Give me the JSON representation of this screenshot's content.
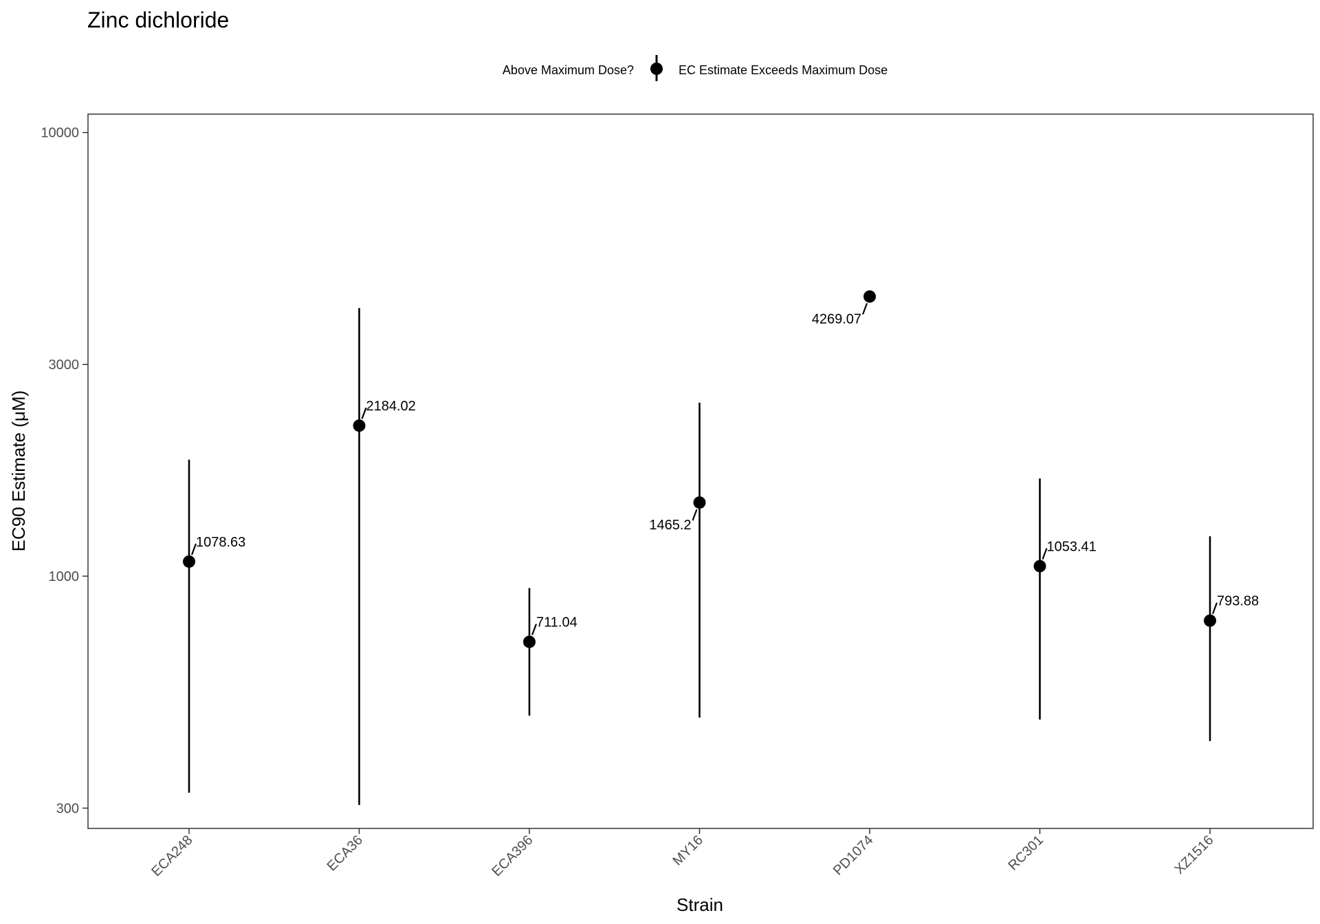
{
  "chart_data": {
    "type": "scatter",
    "title": "Zinc dichloride",
    "xlabel": "Strain",
    "ylabel": "EC90 Estimate (μM)",
    "y_scale": "log10",
    "ylim": [
      270,
      11000
    ],
    "y_ticks": [
      300,
      1000,
      3000,
      10000
    ],
    "y_tick_labels": [
      "300",
      "1000",
      "3000",
      "10000"
    ],
    "categories": [
      "ECA248",
      "ECA36",
      "ECA396",
      "MY16",
      "PD1074",
      "RC301",
      "XZ1516"
    ],
    "legend": {
      "title": "Above Maximum Dose?",
      "entries": [
        "EC Estimate Exceeds Maximum Dose"
      ],
      "position": "top"
    },
    "grid": false,
    "points": [
      {
        "x": "ECA248",
        "y": 1078.63,
        "lower": 325,
        "upper": 1830,
        "label": "1078.63",
        "label_side": "right"
      },
      {
        "x": "ECA36",
        "y": 2184.02,
        "lower": 305,
        "upper": 4020,
        "label": "2184.02",
        "label_side": "right"
      },
      {
        "x": "ECA396",
        "y": 711.04,
        "lower": 485,
        "upper": 940,
        "label": "711.04",
        "label_side": "right"
      },
      {
        "x": "MY16",
        "y": 1465.2,
        "lower": 480,
        "upper": 2460,
        "label": "1465.2",
        "label_side": "left"
      },
      {
        "x": "PD1074",
        "y": 4269.07,
        "lower": null,
        "upper": null,
        "label": "4269.07",
        "label_side": "left"
      },
      {
        "x": "RC301",
        "y": 1053.41,
        "lower": 475,
        "upper": 1660,
        "label": "1053.41",
        "label_side": "right"
      },
      {
        "x": "XZ1516",
        "y": 793.88,
        "lower": 425,
        "upper": 1230,
        "label": "793.88",
        "label_side": "right"
      }
    ],
    "colors": {
      "points": "#000000",
      "panel_border": "#333333",
      "ticks": "#333333"
    }
  }
}
